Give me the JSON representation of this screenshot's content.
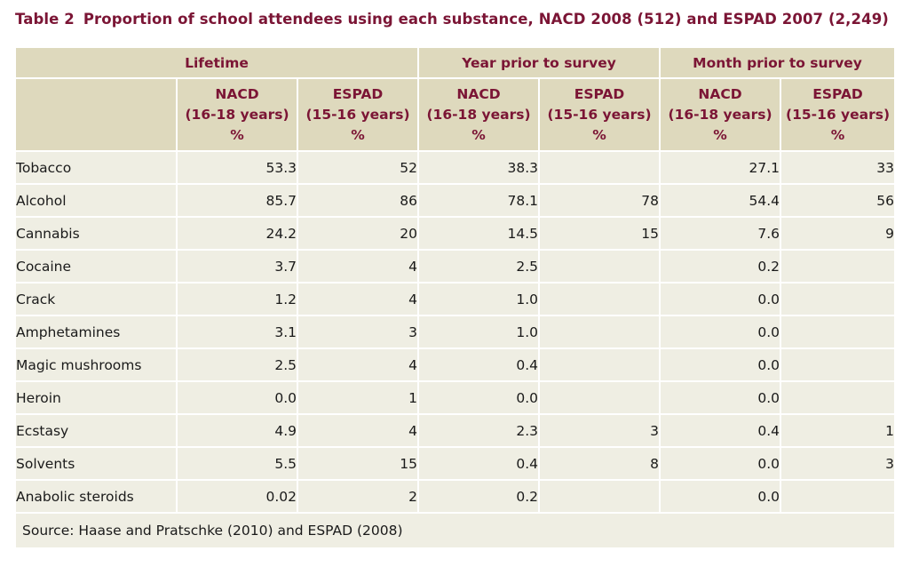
{
  "caption": {
    "number": "Table 2",
    "text": "Proportion of school attendees using each substance, NACD 2008 (512) and ESPAD 2007 (2,249)"
  },
  "groups": [
    "Lifetime",
    "Year prior to survey",
    "Month prior to survey"
  ],
  "subheaders": [
    [
      "NACD",
      "(16-18 years)",
      "%"
    ],
    [
      "ESPAD",
      "(15-16 years)",
      "%"
    ],
    [
      "NACD",
      "(16-18 years)",
      "%"
    ],
    [
      "ESPAD",
      "(15-16 years)",
      "%"
    ],
    [
      "NACD",
      "(16-18 years)",
      "%"
    ],
    [
      "ESPAD",
      "(15-16 years)",
      "%"
    ]
  ],
  "rows": [
    {
      "label": "Tobacco",
      "values": [
        "53.3",
        "52",
        "38.3",
        "",
        "27.1",
        "33"
      ]
    },
    {
      "label": "Alcohol",
      "values": [
        "85.7",
        "86",
        "78.1",
        "78",
        "54.4",
        "56"
      ]
    },
    {
      "label": "Cannabis",
      "values": [
        "24.2",
        "20",
        "14.5",
        "15",
        "7.6",
        "9"
      ]
    },
    {
      "label": "Cocaine",
      "values": [
        "3.7",
        "4",
        "2.5",
        "",
        "0.2",
        ""
      ]
    },
    {
      "label": "Crack",
      "values": [
        "1.2",
        "4",
        "1.0",
        "",
        "0.0",
        ""
      ]
    },
    {
      "label": "Amphetamines",
      "values": [
        "3.1",
        "3",
        "1.0",
        "",
        "0.0",
        ""
      ]
    },
    {
      "label": "Magic mushrooms",
      "values": [
        "2.5",
        "4",
        "0.4",
        "",
        "0.0",
        ""
      ]
    },
    {
      "label": "Heroin",
      "values": [
        "0.0",
        "1",
        "0.0",
        "",
        "0.0",
        ""
      ]
    },
    {
      "label": "Ecstasy",
      "values": [
        "4.9",
        "4",
        "2.3",
        "3",
        "0.4",
        "1"
      ]
    },
    {
      "label": "Solvents",
      "values": [
        "5.5",
        "15",
        "0.4",
        "8",
        "0.0",
        "3"
      ]
    },
    {
      "label": "Anabolic steroids",
      "values": [
        "0.02",
        "2",
        "0.2",
        "",
        "0.0",
        ""
      ]
    }
  ],
  "source": "Source: Haase and Pratschke (2010) and ESPAD (2008)",
  "colors": {
    "header_bg": "#ded9bd",
    "row_bg": "#efeee3",
    "accent": "#7b1535"
  }
}
